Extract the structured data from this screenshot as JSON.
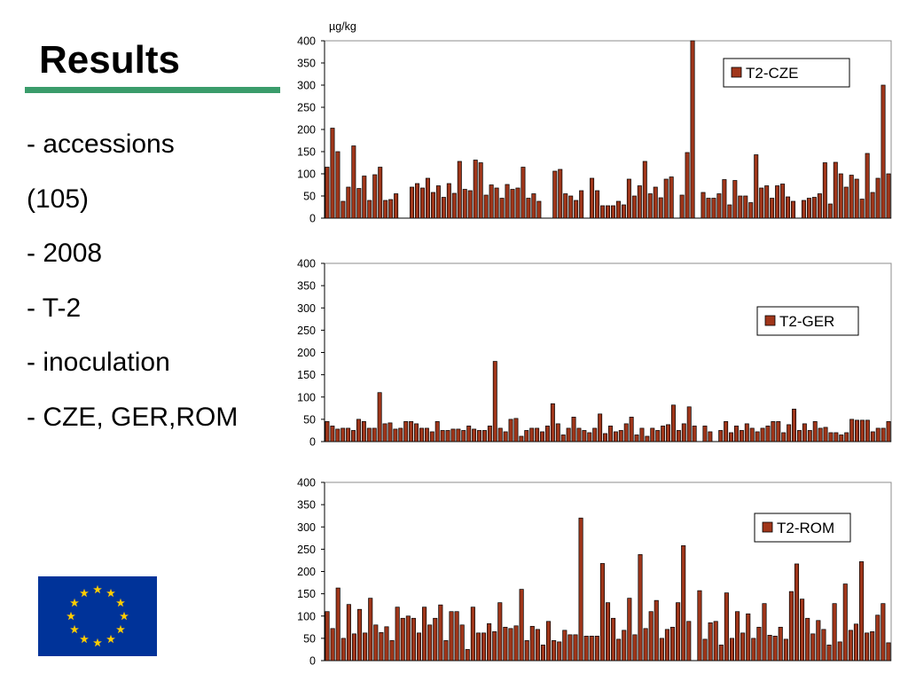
{
  "page": {
    "title": "Results",
    "bullets": [
      "- accessions",
      "(105)",
      "- 2008",
      "- T-2",
      "- inoculation",
      "- CZE, GER,ROM"
    ]
  },
  "colors": {
    "accent_rule": "#3a9c6b",
    "bar_fill": "#a0361a",
    "flag_blue": "#003399",
    "flag_star": "#ffcc00"
  },
  "icons": {
    "flag": "eu-flag-icon"
  },
  "chart_data": [
    {
      "type": "bar",
      "ylabel": "µg/kg",
      "ylim": [
        0,
        400
      ],
      "yticks": [
        0,
        50,
        100,
        150,
        200,
        250,
        300,
        350,
        400
      ],
      "grid": false,
      "legend_position": "top-right",
      "series": [
        {
          "name": "T2-CZE",
          "values": [
            115,
            203,
            150,
            38,
            70,
            163,
            67,
            95,
            40,
            98,
            115,
            40,
            42,
            55,
            null,
            null,
            70,
            78,
            68,
            90,
            58,
            73,
            47,
            78,
            56,
            128,
            65,
            62,
            131,
            125,
            52,
            75,
            68,
            45,
            76,
            65,
            68,
            115,
            45,
            55,
            38,
            null,
            null,
            106,
            110,
            55,
            50,
            40,
            62,
            null,
            90,
            62,
            28,
            28,
            28,
            38,
            30,
            88,
            50,
            73,
            128,
            55,
            70,
            46,
            88,
            93,
            null,
            52,
            148,
            408,
            null,
            58,
            45,
            45,
            55,
            87,
            30,
            85,
            50,
            50,
            35,
            143,
            68,
            73,
            45,
            73,
            77,
            48,
            38,
            null,
            40,
            45,
            47,
            55,
            125,
            32,
            126,
            100,
            70,
            97,
            88,
            43,
            146,
            58,
            90,
            300,
            100
          ]
        }
      ]
    },
    {
      "type": "bar",
      "ylim": [
        0,
        400
      ],
      "yticks": [
        0,
        50,
        100,
        150,
        200,
        250,
        300,
        350,
        400
      ],
      "grid": false,
      "legend_position": "right",
      "series": [
        {
          "name": "T2-GER",
          "values": [
            45,
            35,
            28,
            30,
            30,
            25,
            50,
            45,
            30,
            30,
            110,
            40,
            42,
            28,
            30,
            45,
            45,
            40,
            30,
            30,
            22,
            45,
            25,
            25,
            28,
            28,
            25,
            35,
            28,
            25,
            25,
            35,
            180,
            30,
            22,
            50,
            52,
            12,
            25,
            30,
            30,
            22,
            35,
            85,
            40,
            15,
            30,
            55,
            30,
            25,
            20,
            30,
            62,
            18,
            35,
            22,
            25,
            40,
            55,
            15,
            30,
            12,
            30,
            25,
            35,
            38,
            82,
            25,
            40,
            78,
            35,
            null,
            35,
            22,
            null,
            25,
            45,
            20,
            35,
            25,
            40,
            30,
            22,
            30,
            35,
            45,
            45,
            20,
            38,
            73,
            25,
            40,
            25,
            45,
            30,
            32,
            20,
            20,
            15,
            20,
            50,
            48,
            48,
            48,
            22,
            30,
            30,
            45
          ]
        }
      ]
    },
    {
      "type": "bar",
      "ylim": [
        0,
        400
      ],
      "yticks": [
        0,
        50,
        100,
        150,
        200,
        250,
        300,
        350,
        400
      ],
      "grid": false,
      "legend_position": "right",
      "series": [
        {
          "name": "T2-ROM",
          "values": [
            110,
            72,
            163,
            50,
            126,
            60,
            115,
            62,
            140,
            80,
            63,
            76,
            45,
            120,
            95,
            100,
            95,
            62,
            120,
            80,
            95,
            125,
            45,
            110,
            110,
            80,
            25,
            120,
            62,
            62,
            83,
            65,
            130,
            75,
            72,
            78,
            160,
            45,
            77,
            70,
            35,
            88,
            45,
            42,
            68,
            58,
            58,
            320,
            55,
            55,
            55,
            218,
            130,
            95,
            48,
            68,
            140,
            58,
            238,
            72,
            110,
            135,
            50,
            70,
            75,
            130,
            258,
            88,
            null,
            157,
            48,
            85,
            88,
            35,
            152,
            50,
            110,
            62,
            105,
            50,
            75,
            128,
            57,
            55,
            75,
            48,
            155,
            217,
            138,
            95,
            60,
            90,
            70,
            35,
            128,
            42,
            172,
            68,
            82,
            222,
            62,
            65,
            102,
            128,
            40
          ]
        }
      ]
    }
  ]
}
